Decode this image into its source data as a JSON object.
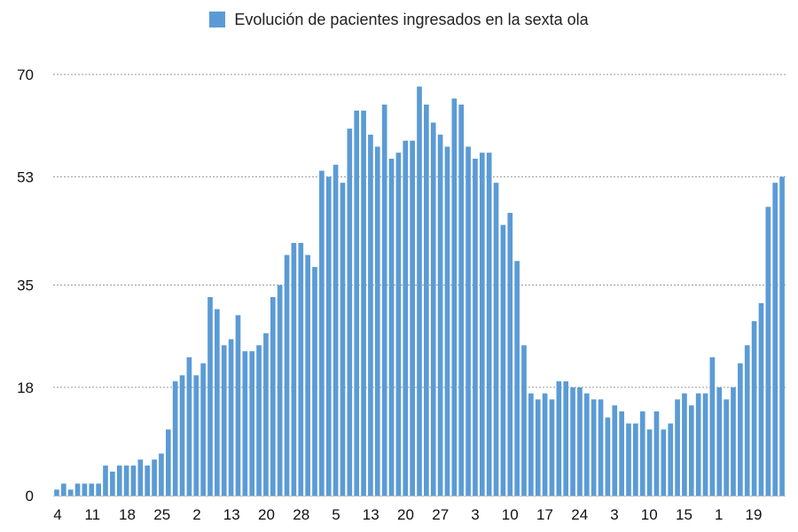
{
  "chart_data": {
    "type": "bar",
    "legend": {
      "label": "Evolución de pacientes ingresados en la sexta ola",
      "placement": "top-center"
    },
    "ylim": [
      0,
      70
    ],
    "yticks": [
      0,
      18,
      35,
      53,
      70
    ],
    "grid": true,
    "color": "#5b9bd5",
    "xtick_labels": [
      "4",
      "11",
      "18",
      "25",
      "2",
      "13",
      "20",
      "28",
      "5",
      "13",
      "20",
      "27",
      "3",
      "10",
      "17",
      "24",
      "3",
      "10",
      "15",
      "1",
      "19"
    ],
    "series": [
      {
        "values": [
          1,
          2,
          1,
          2,
          2,
          2,
          2,
          5,
          4,
          5,
          5,
          5,
          6,
          5,
          6,
          7,
          11,
          19,
          20,
          23,
          20,
          22,
          33,
          31,
          25,
          26,
          30,
          24,
          24,
          25,
          27,
          33,
          35,
          40,
          42,
          42,
          40,
          38,
          54,
          53,
          55,
          52,
          61,
          64,
          64,
          60,
          58,
          65,
          56,
          57,
          59,
          59,
          68,
          65,
          62,
          60,
          58,
          66,
          65,
          58,
          56,
          57,
          57,
          52,
          45,
          47,
          39,
          25,
          17,
          16,
          17,
          16,
          19,
          19,
          18,
          18,
          17,
          16,
          16,
          13,
          15,
          14,
          12,
          12,
          14,
          11,
          14,
          11,
          12,
          16,
          17,
          15,
          17,
          17,
          23,
          18,
          16,
          18,
          22,
          25,
          29,
          32,
          48,
          52,
          53
        ]
      }
    ]
  }
}
